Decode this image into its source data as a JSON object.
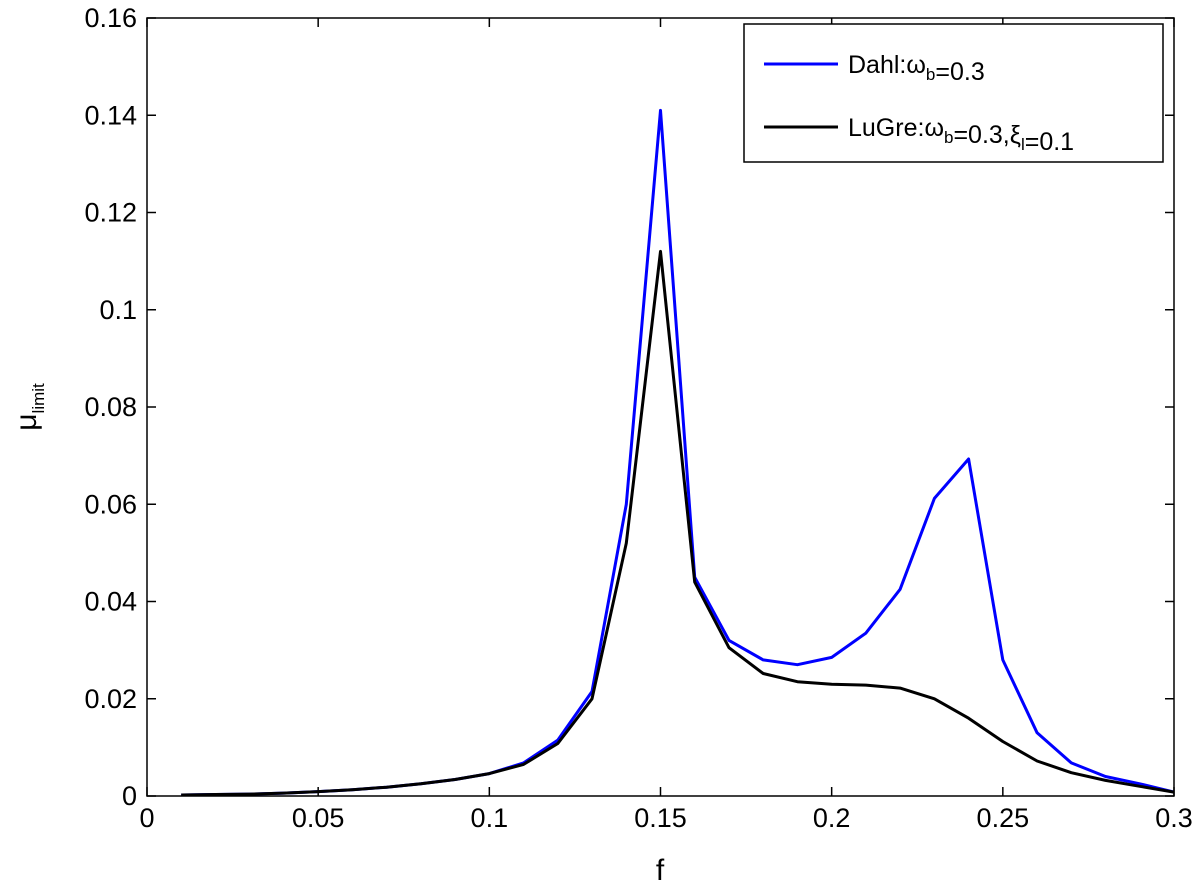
{
  "chart_data": {
    "type": "line",
    "xlabel": "f",
    "ylabel": {
      "main": "μ",
      "sub": "limit"
    },
    "xlim": [
      0,
      0.3
    ],
    "ylim": [
      0,
      0.16
    ],
    "xticks": [
      0,
      0.05,
      0.1,
      0.15,
      0.2,
      0.25,
      0.3
    ],
    "xtick_labels": [
      "0",
      "0.05",
      "0.1",
      "0.15",
      "0.2",
      "0.25",
      "0.3"
    ],
    "yticks": [
      0,
      0.02,
      0.04,
      0.06,
      0.08,
      0.1,
      0.12,
      0.14,
      0.16
    ],
    "ytick_labels": [
      "0",
      "0.02",
      "0.04",
      "0.06",
      "0.08",
      "0.1",
      "0.12",
      "0.14",
      "0.16"
    ],
    "grid": false,
    "legend_position": "top-right",
    "series": [
      {
        "legend": {
          "prefix": "Dahl:",
          "parts": [
            {
              "text": "ω",
              "sub": "b"
            },
            {
              "text": "=0.3"
            }
          ]
        },
        "color": "#0000ff",
        "x": [
          0.01,
          0.02,
          0.03,
          0.04,
          0.05,
          0.06,
          0.07,
          0.08,
          0.09,
          0.1,
          0.11,
          0.12,
          0.13,
          0.14,
          0.15,
          0.16,
          0.17,
          0.18,
          0.19,
          0.2,
          0.21,
          0.22,
          0.23,
          0.24,
          0.25,
          0.26,
          0.27,
          0.28,
          0.29,
          0.3
        ],
        "y": [
          0.0002,
          0.0003,
          0.0004,
          0.0006,
          0.0009,
          0.0013,
          0.0018,
          0.0025,
          0.0034,
          0.0046,
          0.0068,
          0.0115,
          0.0215,
          0.06,
          0.141,
          0.045,
          0.032,
          0.028,
          0.027,
          0.0285,
          0.0335,
          0.0425,
          0.0612,
          0.0693,
          0.028,
          0.013,
          0.0068,
          0.004,
          0.0025,
          0.0008
        ]
      },
      {
        "legend": {
          "prefix": "LuGre:",
          "parts": [
            {
              "text": "ω",
              "sub": "b"
            },
            {
              "text": "=0.3,"
            },
            {
              "text": "ξ",
              "sub": "l"
            },
            {
              "text": "=0.1"
            }
          ]
        },
        "color": "#000000",
        "x": [
          0.01,
          0.02,
          0.03,
          0.04,
          0.05,
          0.06,
          0.07,
          0.08,
          0.09,
          0.1,
          0.11,
          0.12,
          0.13,
          0.14,
          0.15,
          0.16,
          0.17,
          0.18,
          0.19,
          0.2,
          0.21,
          0.22,
          0.23,
          0.24,
          0.25,
          0.26,
          0.27,
          0.28,
          0.29,
          0.3
        ],
        "y": [
          0.0002,
          0.0003,
          0.0004,
          0.0006,
          0.0009,
          0.0013,
          0.0018,
          0.0025,
          0.0034,
          0.0046,
          0.0065,
          0.0108,
          0.02,
          0.052,
          0.112,
          0.044,
          0.0305,
          0.0252,
          0.0235,
          0.023,
          0.0228,
          0.0222,
          0.02,
          0.016,
          0.0112,
          0.0072,
          0.0048,
          0.0032,
          0.002,
          0.0008
        ]
      }
    ]
  }
}
